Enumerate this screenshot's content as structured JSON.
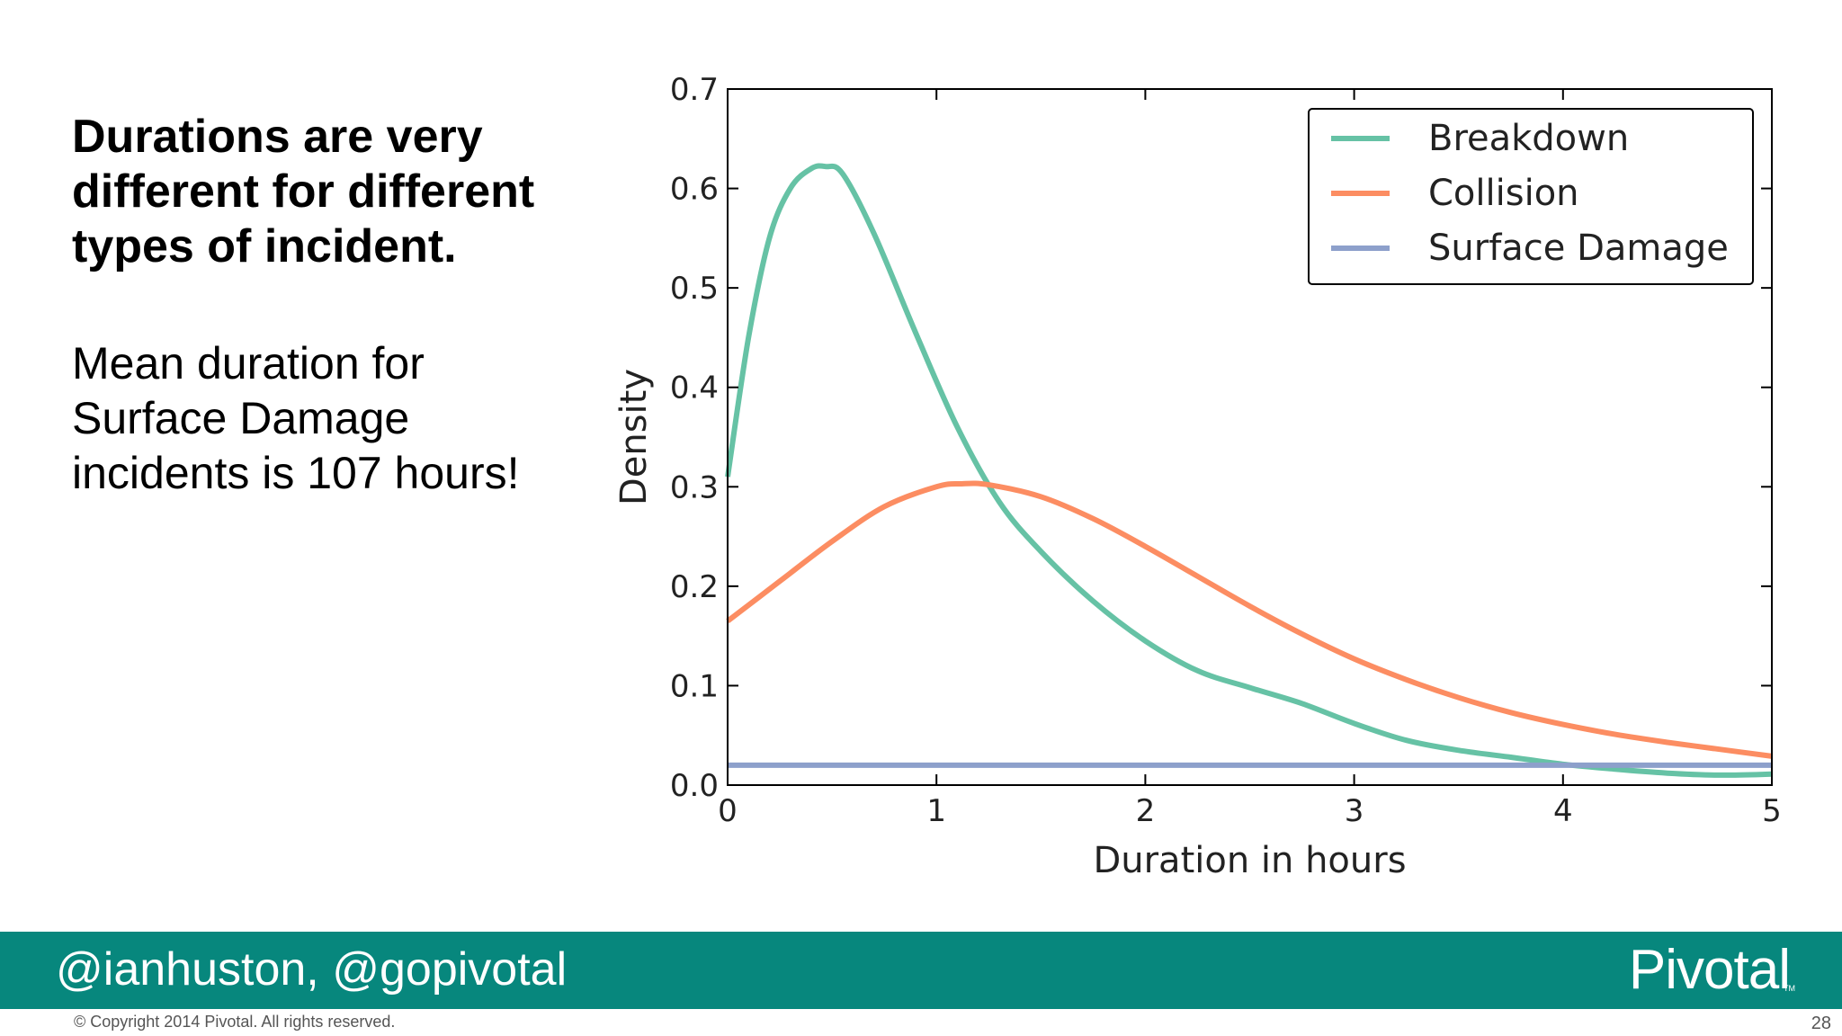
{
  "slide": {
    "headline": "Durations are very different for different types of incident.",
    "body": "Mean duration for Surface Damage incidents is 107 hours!",
    "page_number": "28"
  },
  "footer": {
    "handle": "@ianhuston, @gopivotal",
    "brand": "Pivotal",
    "brand_tm": "TM",
    "copyright": "© Copyright 2014 Pivotal. All rights reserved."
  },
  "chart_data": {
    "type": "line",
    "xlabel": "Duration in hours",
    "ylabel": "Density",
    "xlim": [
      0,
      5
    ],
    "ylim": [
      0,
      0.7
    ],
    "xticks": [
      "0",
      "1",
      "2",
      "3",
      "4",
      "5"
    ],
    "yticks": [
      "0.0",
      "0.1",
      "0.2",
      "0.3",
      "0.4",
      "0.5",
      "0.6",
      "0.7"
    ],
    "grid": false,
    "legend_position": "top-right",
    "colors": {
      "Breakdown": "#66c2a5",
      "Collision": "#fc8d62",
      "Surface Damage": "#8da0cb"
    },
    "series": [
      {
        "name": "Breakdown",
        "x": [
          0,
          0.1,
          0.2,
          0.3,
          0.4,
          0.47,
          0.55,
          0.7,
          0.9,
          1.1,
          1.3,
          1.5,
          1.75,
          2.0,
          2.25,
          2.5,
          2.75,
          3.0,
          3.25,
          3.5,
          3.75,
          4.0,
          4.25,
          4.5,
          4.75,
          5.0
        ],
        "y": [
          0.31,
          0.45,
          0.55,
          0.6,
          0.62,
          0.622,
          0.615,
          0.555,
          0.455,
          0.36,
          0.285,
          0.235,
          0.185,
          0.145,
          0.115,
          0.098,
          0.082,
          0.062,
          0.045,
          0.035,
          0.028,
          0.021,
          0.016,
          0.012,
          0.01,
          0.011
        ]
      },
      {
        "name": "Collision",
        "x": [
          0,
          0.25,
          0.5,
          0.75,
          1.0,
          1.12,
          1.25,
          1.5,
          1.75,
          2.0,
          2.25,
          2.5,
          2.75,
          3.0,
          3.25,
          3.5,
          3.75,
          4.0,
          4.25,
          4.5,
          4.75,
          5.0
        ],
        "y": [
          0.165,
          0.205,
          0.245,
          0.28,
          0.3,
          0.303,
          0.302,
          0.29,
          0.268,
          0.24,
          0.21,
          0.18,
          0.152,
          0.127,
          0.106,
          0.088,
          0.073,
          0.061,
          0.051,
          0.043,
          0.036,
          0.029
        ]
      },
      {
        "name": "Surface Damage",
        "x": [
          0,
          5
        ],
        "y": [
          0.02,
          0.02
        ]
      }
    ]
  }
}
